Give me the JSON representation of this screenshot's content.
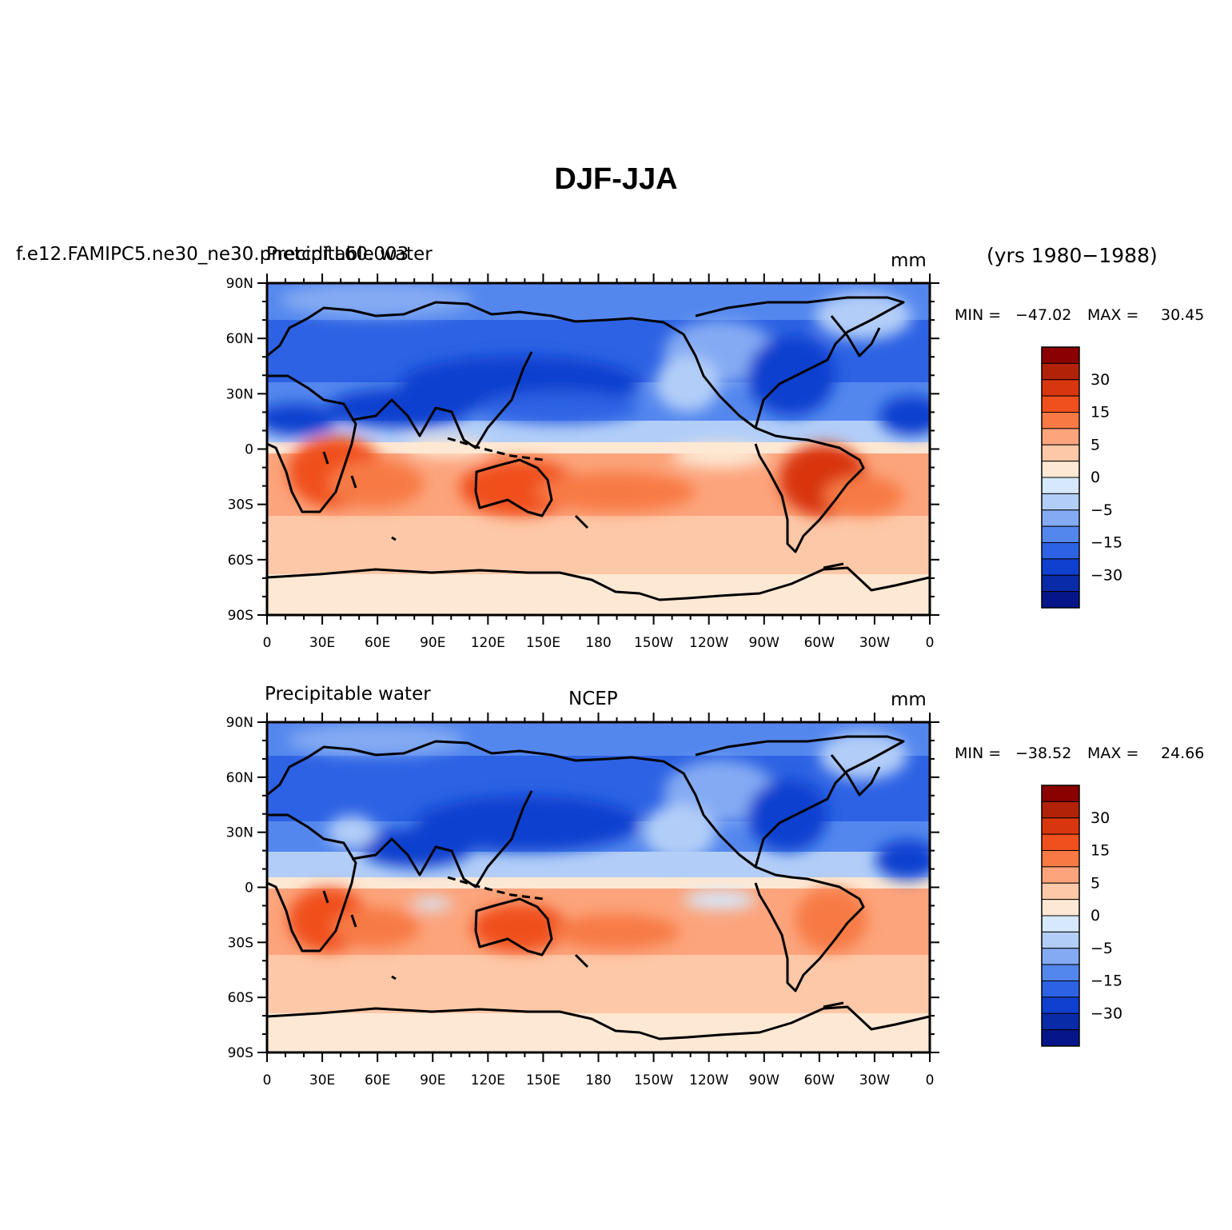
{
  "title": "DJF-JJA",
  "top_panel": {
    "left_string": "f.e12.FAMIPC5.ne30_ne30.pnetcdf.L60.003",
    "center_string": "Precipitable water",
    "units": "mm",
    "years": "(yrs 1980−1988)",
    "min_label": "MIN =",
    "min_value": "−47.02",
    "max_label": "MAX =",
    "max_value": "30.45"
  },
  "bottom_panel": {
    "left_string": "Precipitable water",
    "center_string": "NCEP",
    "units": "mm",
    "min_label": "MIN =",
    "min_value": "−38.52",
    "max_label": "MAX =",
    "max_value": "24.66"
  },
  "lat_ticks": [
    "90N",
    "60N",
    "30N",
    "0",
    "30S",
    "60S",
    "90S"
  ],
  "lon_ticks": [
    "0",
    "30E",
    "60E",
    "90E",
    "120E",
    "150E",
    "180",
    "150W",
    "120W",
    "90W",
    "60W",
    "30W",
    "0"
  ],
  "colorbar": {
    "labels": [
      "30",
      "15",
      "5",
      "0",
      "−5",
      "−15",
      "−30"
    ],
    "colors": [
      "#8b0000",
      "#b22208",
      "#d8360e",
      "#f0501e",
      "#f77a45",
      "#fca47c",
      "#fdc8a8",
      "#fde8d4",
      "#d6e8fb",
      "#b2cef8",
      "#84aaf3",
      "#5487ee",
      "#2d62e4",
      "#1040cf",
      "#0a2ba8",
      "#06168a"
    ]
  },
  "colors": {
    "frame": "#000000",
    "coast": "#000000",
    "background": "#ffffff"
  }
}
